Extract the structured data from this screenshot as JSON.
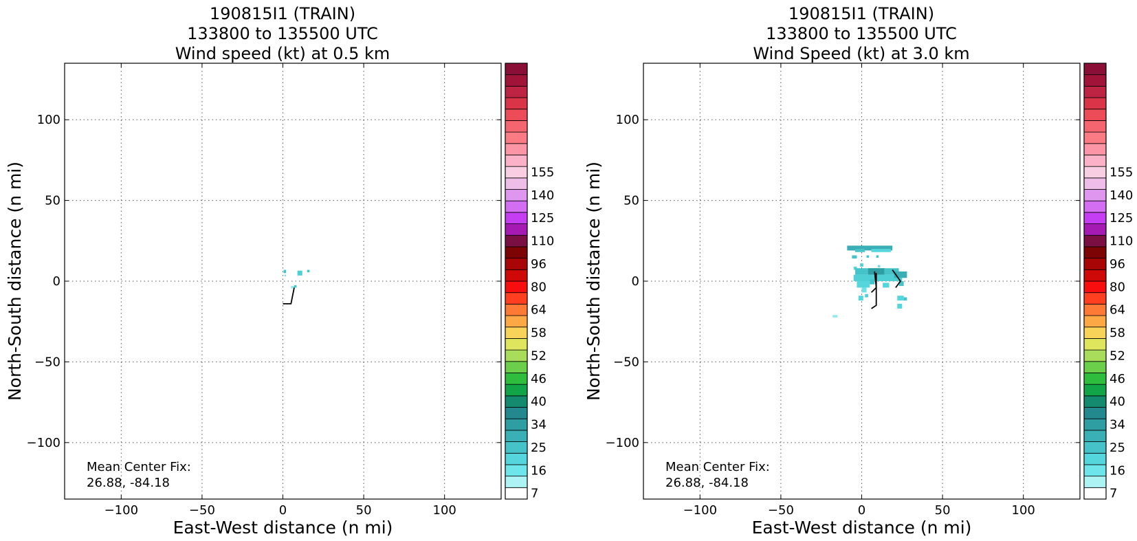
{
  "chart_data": [
    {
      "type": "heatmap",
      "title_lines": [
        "190815I1 (TRAIN)",
        "133800 to 135500 UTC",
        "Wind speed (kt) at 0.5 km"
      ],
      "xlabel": "East-West distance (n mi)",
      "ylabel": "North-South distance (n mi)",
      "xlim": [
        -135,
        135
      ],
      "ylim": [
        -135,
        135
      ],
      "xticks": [
        -100,
        -50,
        0,
        50,
        100
      ],
      "yticks": [
        -100,
        -50,
        0,
        50,
        100
      ],
      "xtick_labels": [
        "−100",
        "−50",
        "0",
        "50",
        "100"
      ],
      "ytick_labels": [
        "−100",
        "−50",
        "0",
        "50",
        "100"
      ],
      "grid": true,
      "annotation": [
        "Mean Center Fix:",
        "26.88, -84.18"
      ],
      "cells": [
        {
          "x": 0.5,
          "y": 7,
          "w": 1.5,
          "h": 2,
          "color": "#3fc4cc"
        },
        {
          "x": 9,
          "y": 6.5,
          "w": 3,
          "h": 3,
          "color": "#4ecfd4"
        },
        {
          "x": 15,
          "y": 7,
          "w": 1.5,
          "h": 1.5,
          "color": "#3fc4cc"
        },
        {
          "x": 1,
          "y": 4,
          "w": 1,
          "h": 1,
          "color": "#6fe0e4"
        },
        {
          "x": 5,
          "y": -3,
          "w": 2,
          "h": 1.5,
          "color": "#8ee9ec"
        },
        {
          "x": 7,
          "y": -2.5,
          "w": 1.5,
          "h": 1.5,
          "color": "#3fc4cc"
        }
      ],
      "wind_barbs": [
        {
          "x": 7,
          "y": -4,
          "points": [
            [
              7,
              -4
            ],
            [
              5,
              -14
            ],
            [
              0,
              -14
            ]
          ]
        }
      ],
      "colorbar": {
        "levels": [
          7,
          10,
          13,
          16,
          19,
          22,
          25,
          28,
          31,
          34,
          37,
          40,
          43,
          46,
          49,
          52,
          55,
          58,
          61,
          64,
          72,
          80,
          88,
          96,
          103,
          110,
          118,
          125,
          133,
          140,
          148,
          155,
          163
        ],
        "tick_labels": [
          "7",
          "16",
          "25",
          "34",
          "40",
          "46",
          "52",
          "58",
          "64",
          "80",
          "96",
          "110",
          "125",
          "140",
          "155"
        ],
        "colors": [
          "#ffffff",
          "#aef3f3",
          "#6ee5ea",
          "#55d6dc",
          "#46c3c8",
          "#3ab0b4",
          "#2f9ea2",
          "#23898f",
          "#148a6e",
          "#12a548",
          "#2ebd3c",
          "#6ccf4c",
          "#a8dc5a",
          "#dfe55c",
          "#f8d35a",
          "#fca845",
          "#fd7a36",
          "#ff3f20",
          "#f80e0e",
          "#cf0808",
          "#a80606",
          "#7d0404",
          "#7a0f43",
          "#a51ab3",
          "#c63ef2",
          "#d36ef2",
          "#df96ef",
          "#eebde8",
          "#f8cfe2",
          "#fbb1c8",
          "#fc95a5",
          "#fa7b84",
          "#f56570",
          "#ec4c58",
          "#d93447",
          "#bd2342",
          "#a1143a",
          "#8a0f37"
        ]
      }
    },
    {
      "type": "heatmap",
      "title_lines": [
        "190815I1 (TRAIN)",
        "133800 to 135500 UTC",
        "Wind Speed (kt) at 3.0 km"
      ],
      "xlabel": "East-West distance (n mi)",
      "ylabel": "North-South distance (n mi)",
      "xlim": [
        -135,
        135
      ],
      "ylim": [
        -135,
        135
      ],
      "xticks": [
        -100,
        -50,
        0,
        50,
        100
      ],
      "yticks": [
        -100,
        -50,
        0,
        50,
        100
      ],
      "xtick_labels": [
        "−100",
        "−50",
        "0",
        "50",
        "100"
      ],
      "ytick_labels": [
        "−100",
        "−50",
        "0",
        "50",
        "100"
      ],
      "grid": true,
      "annotation": [
        "Mean Center Fix:",
        "26.88, -84.18"
      ],
      "cells": [
        {
          "x": -9,
          "y": 22,
          "w": 28,
          "h": 3,
          "color": "#3aaeb4"
        },
        {
          "x": -4,
          "y": 20,
          "w": 6,
          "h": 2,
          "color": "#46c3c8"
        },
        {
          "x": 6,
          "y": 20,
          "w": 12,
          "h": 2,
          "color": "#55d6dc"
        },
        {
          "x": -6,
          "y": 16,
          "w": 3,
          "h": 2,
          "color": "#46c3c8"
        },
        {
          "x": 3,
          "y": 16,
          "w": 1.5,
          "h": 1.5,
          "color": "#3fc4cc"
        },
        {
          "x": 9,
          "y": 16,
          "w": 1.5,
          "h": 1.5,
          "color": "#3fc4cc"
        },
        {
          "x": -1,
          "y": 11,
          "w": 2,
          "h": 2,
          "color": "#4ecfd4"
        },
        {
          "x": -5,
          "y": 9,
          "w": 2,
          "h": 2,
          "color": "#55d6dc"
        },
        {
          "x": 10,
          "y": 10,
          "w": 1.5,
          "h": 1.5,
          "color": "#6fe0e4"
        },
        {
          "x": -4,
          "y": 8,
          "w": 27,
          "h": 4,
          "color": "#46c3c8"
        },
        {
          "x": 4,
          "y": 8,
          "w": 10,
          "h": 4,
          "color": "#2f9ea2"
        },
        {
          "x": -5,
          "y": 4,
          "w": 30,
          "h": 4,
          "color": "#4ecfd4"
        },
        {
          "x": 20,
          "y": 6,
          "w": 8,
          "h": 4,
          "color": "#3aaeb4"
        },
        {
          "x": -3,
          "y": 0,
          "w": 8,
          "h": 4,
          "color": "#55d6dc"
        },
        {
          "x": 5,
          "y": 1,
          "w": 3,
          "h": 3,
          "color": "#46c3c8"
        },
        {
          "x": 13,
          "y": -1,
          "w": 4,
          "h": 3,
          "color": "#55d6dc"
        },
        {
          "x": 23,
          "y": 0,
          "w": 3,
          "h": 3,
          "color": "#46c3c8"
        },
        {
          "x": 0,
          "y": -4,
          "w": 3,
          "h": 3,
          "color": "#6fe0e4"
        },
        {
          "x": -2,
          "y": -9,
          "w": 3,
          "h": 3,
          "color": "#55d6dc"
        },
        {
          "x": 2,
          "y": -8,
          "w": 2,
          "h": 2,
          "color": "#4ecfd4"
        },
        {
          "x": 22,
          "y": -9,
          "w": 4,
          "h": 3,
          "color": "#55d6dc"
        },
        {
          "x": 26,
          "y": -10,
          "w": 2,
          "h": 2,
          "color": "#46c3c8"
        },
        {
          "x": 22,
          "y": -14,
          "w": 3,
          "h": 3,
          "color": "#55d6dc"
        },
        {
          "x": -18,
          "y": -21,
          "w": 3,
          "h": 1.5,
          "color": "#8ee9ec"
        }
      ],
      "wind_barbs": [
        {
          "x": 9,
          "y": 5,
          "points": [
            [
              9,
              5
            ],
            [
              9,
              -15
            ],
            [
              6,
              -17
            ]
          ]
        },
        {
          "x": 8,
          "y": 6,
          "points": [
            [
              8,
              6
            ],
            [
              9,
              -4
            ],
            [
              6,
              -7
            ]
          ]
        },
        {
          "x": 19,
          "y": 7,
          "points": [
            [
              19,
              7
            ],
            [
              24,
              0
            ],
            [
              21,
              -4
            ]
          ]
        }
      ],
      "colorbar": {
        "levels": [
          7,
          10,
          13,
          16,
          19,
          22,
          25,
          28,
          31,
          34,
          37,
          40,
          43,
          46,
          49,
          52,
          55,
          58,
          61,
          64,
          72,
          80,
          88,
          96,
          103,
          110,
          118,
          125,
          133,
          140,
          148,
          155,
          163
        ],
        "tick_labels": [
          "7",
          "16",
          "25",
          "34",
          "40",
          "46",
          "52",
          "58",
          "64",
          "80",
          "96",
          "110",
          "125",
          "140",
          "155"
        ],
        "colors": [
          "#ffffff",
          "#aef3f3",
          "#6ee5ea",
          "#55d6dc",
          "#46c3c8",
          "#3ab0b4",
          "#2f9ea2",
          "#23898f",
          "#148a6e",
          "#12a548",
          "#2ebd3c",
          "#6ccf4c",
          "#a8dc5a",
          "#dfe55c",
          "#f8d35a",
          "#fca845",
          "#fd7a36",
          "#ff3f20",
          "#f80e0e",
          "#cf0808",
          "#a80606",
          "#7d0404",
          "#7a0f43",
          "#a51ab3",
          "#c63ef2",
          "#d36ef2",
          "#df96ef",
          "#eebde8",
          "#f8cfe2",
          "#fbb1c8",
          "#fc95a5",
          "#fa7b84",
          "#f56570",
          "#ec4c58",
          "#d93447",
          "#bd2342",
          "#a1143a",
          "#8a0f37"
        ]
      }
    }
  ]
}
